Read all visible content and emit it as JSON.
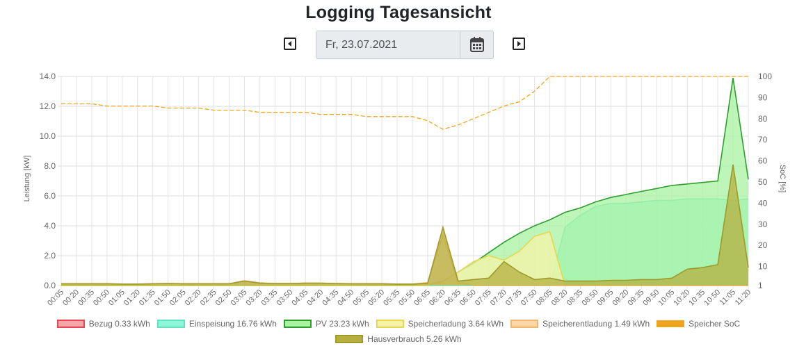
{
  "page": {
    "title": "Logging Tagesansicht"
  },
  "date_picker": {
    "value": "Fr, 23.07.2021"
  },
  "chart_data": {
    "type": "area",
    "ylabel_left": "Leistung [kW]",
    "ylabel_right": "SoC [%]",
    "ylim_left": [
      0,
      14
    ],
    "ylim_right": [
      1,
      100
    ],
    "yticks_left": [
      "0.0",
      "2.0",
      "4.0",
      "6.0",
      "8.0",
      "10.0",
      "12.0",
      "14.0"
    ],
    "yticks_right": [
      "1",
      "10",
      "20",
      "30",
      "40",
      "50",
      "60",
      "70",
      "80",
      "90",
      "100"
    ],
    "x": [
      "00:05",
      "00:20",
      "00:35",
      "00:50",
      "01:05",
      "01:20",
      "01:35",
      "01:50",
      "02:05",
      "02:20",
      "02:35",
      "02:50",
      "03:05",
      "03:20",
      "03:35",
      "03:50",
      "04:05",
      "04:20",
      "04:35",
      "04:50",
      "05:05",
      "05:20",
      "05:35",
      "05:50",
      "06:05",
      "06:20",
      "06:35",
      "06:50",
      "07:05",
      "07:20",
      "07:35",
      "07:50",
      "08:05",
      "08:20",
      "08:35",
      "08:50",
      "09:05",
      "09:20",
      "09:35",
      "09:50",
      "10:05",
      "10:20",
      "10:35",
      "10:50",
      "11:05",
      "11:20"
    ],
    "series": [
      {
        "name": "Bezug 0.33 kWh",
        "axis": "left",
        "color": "#e8474f",
        "fill": "#f7a6aa",
        "values": [
          0.03,
          0.03,
          0.03,
          0.03,
          0.03,
          0.03,
          0.03,
          0.03,
          0.03,
          0.03,
          0.03,
          0.03,
          0.03,
          0.03,
          0.03,
          0.03,
          0.03,
          0.03,
          0.03,
          0.03,
          0.03,
          0.03,
          0.03,
          0.03,
          0.05,
          0.03,
          0.03,
          0.03,
          0.03,
          0.03,
          0.03,
          0.03,
          0.03,
          0.03,
          0.03,
          0.03,
          0.03,
          0.03,
          0.03,
          0.03,
          0.03,
          0.03,
          0.03,
          0.03,
          0.03,
          0.03
        ]
      },
      {
        "name": "Einspeisung 16.76 kWh",
        "axis": "left",
        "color": "#5fe3c5",
        "fill": "#8ef7da",
        "values": [
          0,
          0,
          0,
          0,
          0,
          0,
          0,
          0,
          0,
          0,
          0,
          0,
          0,
          0,
          0,
          0,
          0,
          0,
          0,
          0,
          0,
          0,
          0,
          0,
          0,
          0,
          0,
          0,
          0,
          0,
          0,
          0,
          0,
          3.9,
          4.7,
          5.3,
          5.5,
          5.5,
          5.6,
          5.7,
          5.7,
          5.8,
          5.8,
          5.8,
          5.7,
          5.8
        ]
      },
      {
        "name": "PV 23.23 kWh",
        "axis": "left",
        "color": "#2e9e2e",
        "fill": "#a8f2a0",
        "values": [
          0,
          0,
          0,
          0,
          0,
          0,
          0,
          0,
          0,
          0,
          0,
          0,
          0,
          0,
          0,
          0,
          0,
          0,
          0,
          0,
          0,
          0,
          0,
          0,
          0.05,
          0.3,
          0.9,
          1.5,
          2.2,
          2.9,
          3.5,
          4.0,
          4.4,
          4.9,
          5.2,
          5.6,
          5.9,
          6.1,
          6.3,
          6.5,
          6.7,
          6.8,
          6.9,
          7.0,
          13.9,
          7.1
        ]
      },
      {
        "name": "Speicherladung 3.64 kWh",
        "axis": "left",
        "color": "#e6d84e",
        "fill": "#f6f3a8",
        "values": [
          0,
          0,
          0,
          0,
          0,
          0,
          0,
          0,
          0,
          0,
          0,
          0,
          0,
          0,
          0,
          0,
          0,
          0,
          0,
          0,
          0,
          0,
          0,
          0,
          0,
          0.2,
          0.9,
          1.6,
          2.0,
          1.7,
          2.3,
          3.3,
          3.6,
          0,
          0,
          0,
          0,
          0,
          0,
          0,
          0,
          0,
          0,
          0,
          0,
          0
        ]
      },
      {
        "name": "Speicherentladung 1.49 kWh",
        "axis": "left",
        "color": "#f2b769",
        "fill": "#fbd7a8",
        "values": [
          0.12,
          0.12,
          0.12,
          0.12,
          0.1,
          0.1,
          0.12,
          0.14,
          0.12,
          0.12,
          0.12,
          0.12,
          0.32,
          0.18,
          0.14,
          0.14,
          0.16,
          0.16,
          0.14,
          0.12,
          0.12,
          0.12,
          0.1,
          0.1,
          0.2,
          3.4,
          0.2,
          0,
          0,
          0,
          0,
          0,
          0,
          0,
          0,
          0,
          0,
          0,
          0,
          0,
          0,
          0,
          0,
          0,
          0,
          0
        ]
      },
      {
        "name": "Speicher SoC",
        "axis": "right",
        "color": "#f0a41e",
        "dashed": true,
        "values": [
          87,
          87,
          87,
          86,
          86,
          86,
          86,
          85,
          85,
          85,
          84,
          84,
          84,
          83,
          83,
          83,
          83,
          82,
          82,
          82,
          81,
          81,
          81,
          81,
          79,
          75,
          77,
          80,
          83,
          86,
          88,
          93,
          100,
          100,
          100,
          100,
          100,
          100,
          100,
          100,
          100,
          100,
          100,
          100,
          100,
          100
        ]
      },
      {
        "name": "Hausverbrauch 5.26 kWh",
        "axis": "left",
        "color": "#9e9a2c",
        "fill": "#b5b040",
        "values": [
          0.12,
          0.12,
          0.12,
          0.12,
          0.1,
          0.1,
          0.12,
          0.14,
          0.12,
          0.12,
          0.12,
          0.12,
          0.3,
          0.16,
          0.14,
          0.14,
          0.16,
          0.16,
          0.14,
          0.12,
          0.12,
          0.12,
          0.1,
          0.1,
          0.15,
          3.9,
          0.3,
          0.4,
          0.5,
          1.6,
          0.9,
          0.4,
          0.5,
          0.3,
          0.3,
          0.3,
          0.35,
          0.35,
          0.4,
          0.4,
          0.5,
          1.1,
          1.2,
          1.4,
          8.1,
          1.2
        ]
      }
    ],
    "legend_position": "bottom",
    "grid": true
  }
}
